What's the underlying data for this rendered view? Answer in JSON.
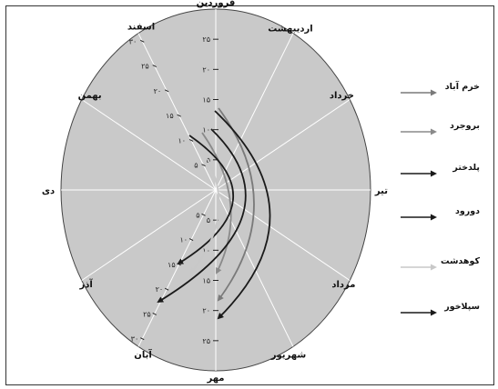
{
  "chart_data": {
    "type": "radial-arc",
    "directions": [
      {
        "label": "فروردین",
        "angle": 0
      },
      {
        "label": "اردیبهشت",
        "angle": 30
      },
      {
        "label": "خرداد",
        "angle": 60
      },
      {
        "label": "تیر",
        "angle": 90
      },
      {
        "label": "مرداد",
        "angle": 120
      },
      {
        "label": "شهریور",
        "angle": 150
      },
      {
        "label": "مهر",
        "angle": 180
      },
      {
        "label": "آبان",
        "angle": 210
      },
      {
        "label": "آذر",
        "angle": 240
      },
      {
        "label": "دی",
        "angle": 270
      },
      {
        "label": "بهمن",
        "angle": 300
      },
      {
        "label": "اسفند",
        "angle": 330
      }
    ],
    "axis_ticks_up": [
      "۲۵",
      "۲۰",
      "۱۵",
      "۱۰",
      "۵"
    ],
    "axis_ticks_down": [
      "۵",
      "۱۰",
      "۱۵",
      "۲۰",
      "۲۵"
    ],
    "axis_ticks_diag": [
      "۵",
      "۱۰",
      "۱۵",
      "۲۰",
      "۲۵",
      "۳۰"
    ],
    "series": [
      {
        "name": "خرم آباد",
        "color": "#7a7a7a",
        "start": [
          3,
          13
        ],
        "end": [
          18,
          15
        ],
        "bulge": 0.55
      },
      {
        "name": "بروجرد",
        "color": "#8a8a8a",
        "start": [
          3,
          10
        ],
        "end": [
          18,
          11
        ],
        "bulge": 0.45
      },
      {
        "name": "پلدختر",
        "color": "#1a1a1a",
        "start": [
          3,
          18
        ],
        "end": [
          18,
          24
        ],
        "bulge": 0.72
      },
      {
        "name": "دورود",
        "color": "#1a1a1a",
        "start": [
          3,
          15
        ],
        "end": [
          20,
          18
        ],
        "bulge": 0.62
      },
      {
        "name": "کوهدشت",
        "color": "#c8c8c8",
        "start": [
          3,
          6
        ],
        "end": [
          17,
          8
        ],
        "bulge": 0.35
      },
      {
        "name": "سپلاخور",
        "color": "#1a1a1a",
        "start": [
          3,
          21
        ],
        "end": [
          21,
          27
        ],
        "bulge": 0.9
      }
    ]
  }
}
